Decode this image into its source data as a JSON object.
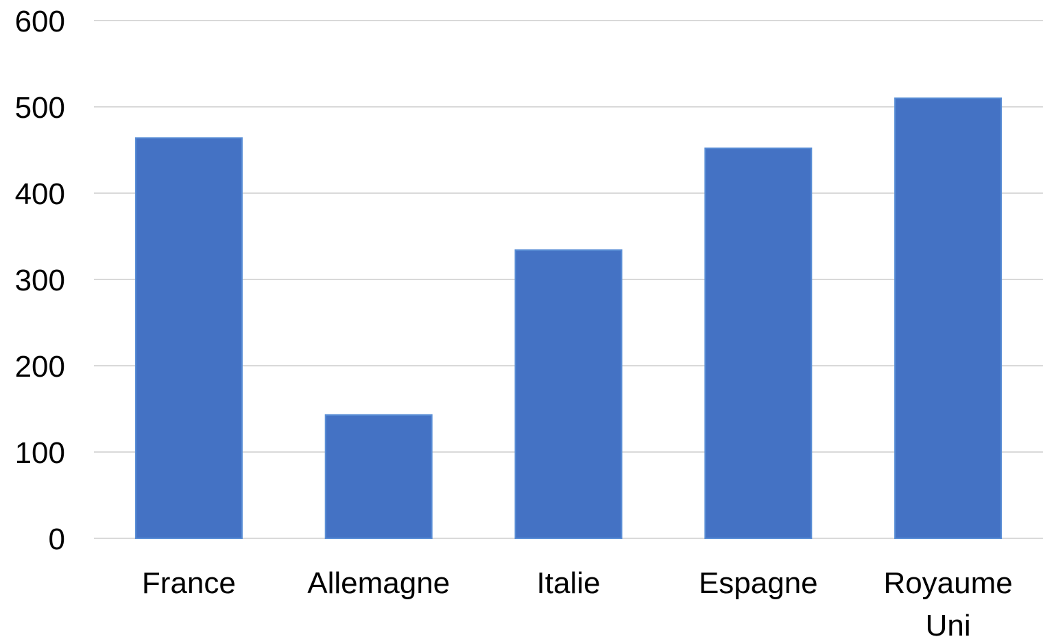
{
  "chart_data": {
    "type": "bar",
    "title": "",
    "xlabel": "",
    "ylabel": "",
    "categories": [
      "France",
      "Allemagne",
      "Italie",
      "Espagne",
      "Royaume Uni"
    ],
    "values": [
      464,
      143,
      334,
      452,
      510
    ],
    "ylim": [
      0,
      600
    ],
    "yticks": [
      "0",
      "100",
      "200",
      "300",
      "400",
      "500",
      "600"
    ],
    "grid": true,
    "legend": "none",
    "colors": {
      "bar": "#4472c4",
      "grid": "#d9d9d9",
      "text": "#000000"
    }
  }
}
